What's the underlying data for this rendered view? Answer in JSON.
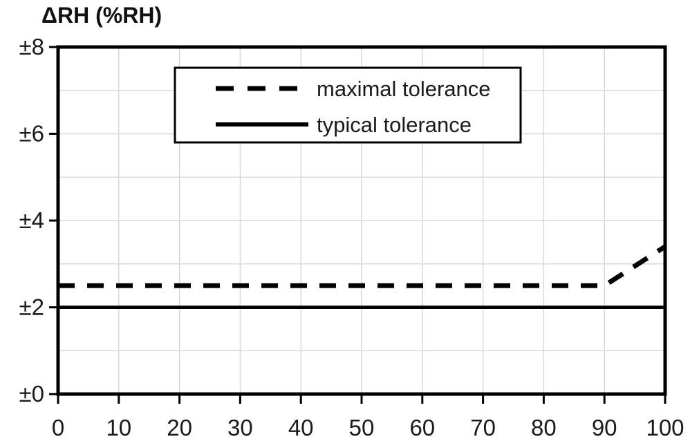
{
  "chart_data": {
    "type": "line",
    "title": "ΔRH (%RH)",
    "xlabel": "",
    "ylabel": "ΔRH (%RH)",
    "xlim": [
      0,
      100
    ],
    "ylim": [
      0,
      8
    ],
    "x_ticks": [
      0,
      10,
      20,
      30,
      40,
      50,
      60,
      70,
      80,
      90,
      100
    ],
    "x_tick_labels": [
      "0",
      "10",
      "20",
      "30",
      "40",
      "50",
      "60",
      "70",
      "80",
      "90",
      "100"
    ],
    "y_ticks": [
      0,
      2,
      4,
      6,
      8
    ],
    "y_tick_labels": [
      "±0",
      "±2",
      "±4",
      "±6",
      "±8"
    ],
    "grid": {
      "x_step": 10,
      "y_step": 1,
      "on": true
    },
    "legend": {
      "position": "inside-top-center",
      "entries": [
        {
          "label": "maximal tolerance",
          "style": "dashed"
        },
        {
          "label": "typical tolerance",
          "style": "solid"
        }
      ]
    },
    "series": [
      {
        "name": "maximal tolerance",
        "style": "dashed",
        "color": "#000000",
        "points": [
          [
            0,
            2.5
          ],
          [
            90,
            2.5
          ],
          [
            100,
            3.4
          ]
        ]
      },
      {
        "name": "typical tolerance",
        "style": "solid",
        "color": "#000000",
        "points": [
          [
            0,
            2.0
          ],
          [
            100,
            2.0
          ]
        ]
      }
    ],
    "colors": {
      "line": "#000000",
      "grid": "#d9d9d9",
      "text": "#1a1a1a",
      "axis": "#000000",
      "background": "#ffffff",
      "legend_background": "#ffffff"
    }
  }
}
